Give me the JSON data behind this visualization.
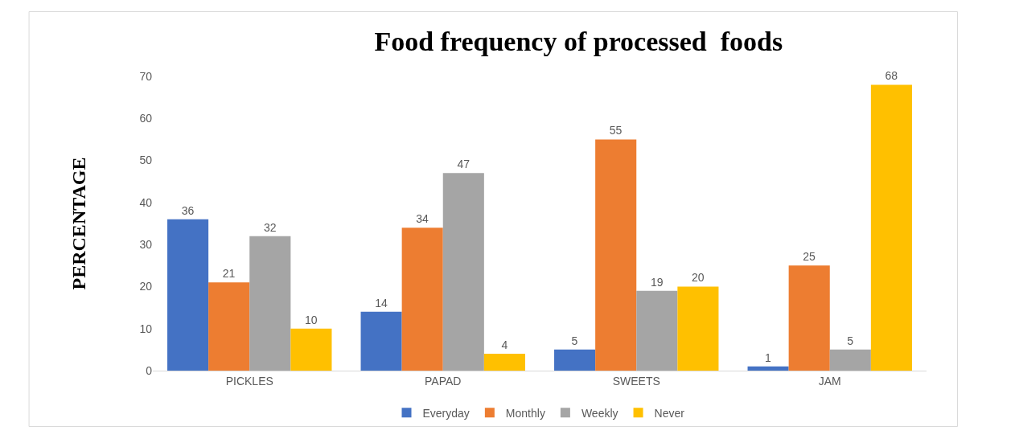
{
  "chart_data": {
    "type": "bar",
    "title": "Food frequency of processed  foods",
    "ylabel": "PERCENTAGE",
    "categories": [
      "PICKLES",
      "PAPAD",
      "SWEETS",
      "JAM"
    ],
    "series": [
      {
        "name": "Everyday",
        "color": "#4472c4",
        "values": [
          36,
          14,
          5,
          1
        ]
      },
      {
        "name": "Monthly",
        "color": "#ed7d31",
        "values": [
          21,
          34,
          55,
          25
        ]
      },
      {
        "name": "Weekly",
        "color": "#a5a5a5",
        "values": [
          32,
          47,
          19,
          5
        ]
      },
      {
        "name": "Never",
        "color": "#ffc000",
        "values": [
          10,
          4,
          20,
          68
        ]
      }
    ],
    "ylim": [
      0,
      70
    ],
    "yticks": [
      0,
      10,
      20,
      30,
      40,
      50,
      60,
      70
    ],
    "grid": false,
    "legend": "bottom",
    "data_labels": true
  }
}
